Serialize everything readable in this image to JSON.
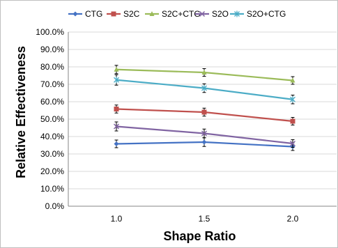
{
  "chart_data": {
    "type": "line",
    "title": "",
    "xlabel": "Shape Ratio",
    "ylabel": "Relative Effectiveness",
    "categories": [
      "1.0",
      "1.5",
      "2.0"
    ],
    "ylim": [
      0,
      100
    ],
    "yticks": [
      "0.0%",
      "10.0%",
      "20.0%",
      "30.0%",
      "40.0%",
      "50.0%",
      "60.0%",
      "70.0%",
      "80.0%",
      "90.0%",
      "100.0%"
    ],
    "grid": "horizontal major",
    "legend_position": "top",
    "series": [
      {
        "name": "CTG",
        "color": "#4472c4",
        "marker": "diamond",
        "values": [
          35.8,
          36.8,
          34.2
        ],
        "errors": [
          2.2,
          2.5,
          2.2
        ]
      },
      {
        "name": "S2C",
        "color": "#c0504d",
        "marker": "square",
        "values": [
          55.8,
          54.0,
          48.8
        ],
        "errors": [
          2.3,
          2.3,
          2.2
        ]
      },
      {
        "name": "S2C+CTG",
        "color": "#9bbb59",
        "marker": "triangle",
        "values": [
          78.5,
          76.8,
          72.2
        ],
        "errors": [
          2.4,
          2.2,
          2.2
        ]
      },
      {
        "name": "S2O",
        "color": "#8064a2",
        "marker": "x",
        "values": [
          45.8,
          41.8,
          36.0
        ],
        "errors": [
          2.6,
          2.5,
          2.2
        ]
      },
      {
        "name": "S2O+CTG",
        "color": "#4bacc6",
        "marker": "star",
        "values": [
          72.5,
          67.8,
          61.3
        ],
        "errors": [
          3.0,
          2.5,
          2.5
        ]
      }
    ]
  }
}
